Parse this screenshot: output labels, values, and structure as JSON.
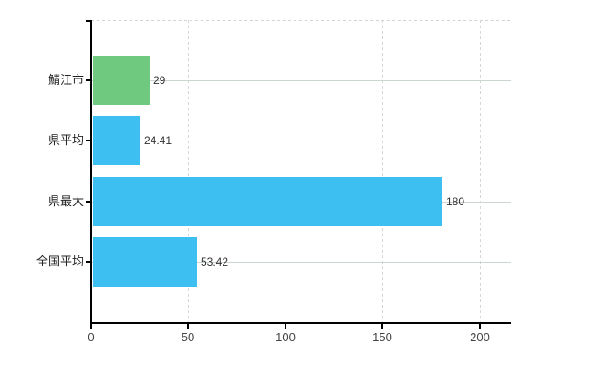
{
  "chart_data": {
    "type": "bar",
    "orientation": "horizontal",
    "categories": [
      "鯖江市",
      "県平均",
      "県最大",
      "全国平均"
    ],
    "values": [
      29,
      24.41,
      180,
      53.42
    ],
    "data_labels": [
      "29",
      "24.41",
      "180",
      "53.42"
    ],
    "bar_colors": [
      "#6fca80",
      "#3ebff2",
      "#3ebff2",
      "#3ebff2"
    ],
    "x_tick_labels": [
      "0",
      "50",
      "100",
      "150",
      "200"
    ],
    "x_tick_values": [
      0,
      50,
      100,
      150,
      200
    ],
    "xlim": [
      0,
      216
    ],
    "grid": {
      "horizontal": "solid",
      "vertical": "dashed",
      "top_border": "dashed"
    },
    "legend_position": "none"
  },
  "colors": {
    "background": "#ffffff",
    "bar_green": "#6fca80",
    "bar_blue": "#3ebff2",
    "axis": "#000000",
    "grid_horizontal": "#ccd6cc",
    "grid_vertical": "#d6d6d6",
    "category_label": "#222222",
    "value_label": "#333333",
    "x_tick_label": "#444444"
  }
}
